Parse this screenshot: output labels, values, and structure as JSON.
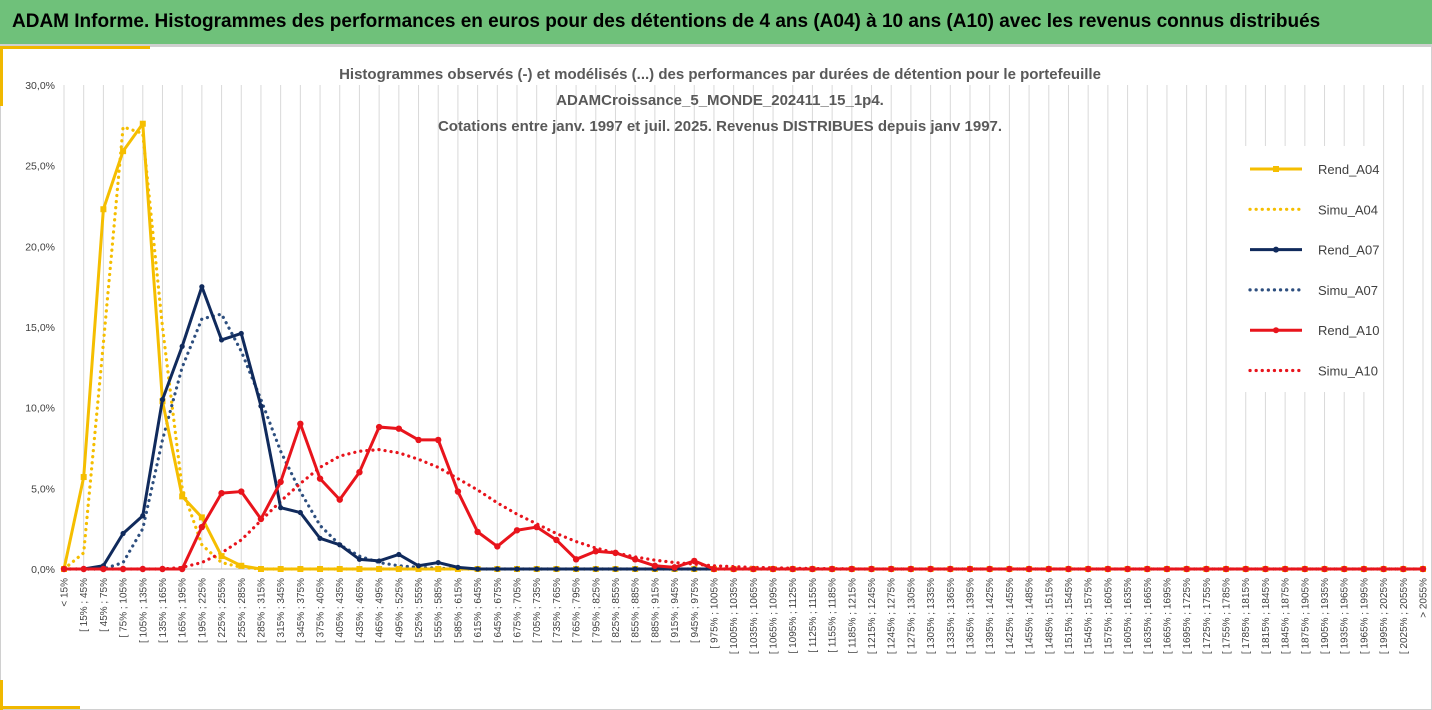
{
  "banner": {
    "title": "ADAM Informe. Histogrammes des performances en euros pour des détentions de 4 ans (A04) à 10 ans (A10) avec les revenus connus distribués"
  },
  "chart_data": {
    "type": "line",
    "title_lines": [
      "Histogrammes observés (-) et modélisés (...) des performances par durées de détention pour le portefeuille",
      "ADAMCroissance_5_MONDE_202411_15_1p4.",
      "Cotations entre janv. 1997 et juil. 2025. Revenus DISTRIBUES depuis janv 1997."
    ],
    "categories": [
      "< 15%",
      "[ 15% ; 45% ",
      "[ 45% ; 75% ",
      "[ 75% ; 105% ",
      "[ 105% ; 135% ",
      "[ 135% ; 165% ",
      "[ 165% ; 195% ",
      "[ 195% ; 225% ",
      "[ 225% ; 255% ",
      "[ 255% ; 285% ",
      "[ 285% ; 315% ",
      "[ 315% ; 345% ",
      "[ 345% ; 375% ",
      "[ 375% ; 405% ",
      "[ 405% ; 435% ",
      "[ 435% ; 465% ",
      "[ 465% ; 495% ",
      "[ 495% ; 525% ",
      "[ 525% ; 555% ",
      "[ 555% ; 585% ",
      "[ 585% ; 615% ",
      "[ 615% ; 645% ",
      "[ 645% ; 675% ",
      "[ 675% ; 705% ",
      "[ 705% ; 735% ",
      "[ 735% ; 765% ",
      "[ 765% ; 795% ",
      "[ 795% ; 825% ",
      "[ 825% ; 855% ",
      "[ 855% ; 885% ",
      "[ 885% ; 915% ",
      "[ 915% ; 945% ",
      "[ 945% ; 975% ",
      "[ 975% ; 1005% ",
      "[ 1005% ; 1035% ",
      "[ 1035% ; 1065% ",
      "[ 1065% ; 1095% ",
      "[ 1095% ; 1125% ",
      "[ 1125% ; 1155% ",
      "[ 1155% ; 1185% ",
      "[ 1185% ; 1215% ",
      "[ 1215% ; 1245% ",
      "[ 1245% ; 1275% ",
      "[ 1275% ; 1305% ",
      "[ 1305% ; 1335% ",
      "[ 1335% ; 1365% ",
      "[ 1365% ; 1395% ",
      "[ 1395% ; 1425% ",
      "[ 1425% ; 1455% ",
      "[ 1455% ; 1485% ",
      "[ 1485% ; 1515% ",
      "[ 1515% ; 1545% ",
      "[ 1545% ; 1575% ",
      "[ 1575% ; 1605% ",
      "[ 1605% ; 1635% ",
      "[ 1635% ; 1665% ",
      "[ 1665% ; 1695% ",
      "[ 1695% ; 1725% ",
      "[ 1725% ; 1755% ",
      "[ 1755% ; 1785% ",
      "[ 1785% ; 1815% ",
      "[ 1815% ; 1845% ",
      "[ 1845% ; 1875% ",
      "[ 1875% ; 1905% ",
      "[ 1905% ; 1935% ",
      "[ 1935% ; 1965% ",
      "[ 1965% ; 1995% ",
      "[ 1995% ; 2025% ",
      "[ 2025% ; 2055% ",
      "> 2055%"
    ],
    "y_ticks": [
      "0,0%",
      "5,0%",
      "10,0%",
      "15,0%",
      "20,0%",
      "25,0%",
      "30,0%"
    ],
    "ylim": [
      0,
      30
    ],
    "grid": "vertical",
    "legend_position": "right",
    "series": [
      {
        "name": "Rend_A04",
        "style": "solid",
        "color": "#f5be00",
        "values": [
          0,
          5.7,
          22.3,
          25.9,
          27.6,
          10.4,
          4.5,
          3.2,
          0.8,
          0.2,
          0,
          0,
          0,
          0,
          0,
          0,
          0,
          0,
          0,
          0,
          0,
          0,
          0,
          0,
          0,
          0,
          0,
          0,
          0,
          0,
          0,
          0,
          0,
          0,
          0,
          0,
          0,
          0,
          0,
          0,
          0,
          0,
          0,
          0,
          0,
          0,
          0,
          0,
          0,
          0,
          0,
          0,
          0,
          0,
          0,
          0,
          0,
          0,
          0,
          0,
          0,
          0,
          0,
          0,
          0,
          0,
          0,
          0,
          0,
          0
        ]
      },
      {
        "name": "Simu_A04",
        "style": "dotted",
        "color": "#f5be00",
        "values": [
          0,
          1.0,
          14.0,
          27.4,
          27.0,
          15.0,
          5.0,
          1.5,
          0.4,
          0.1,
          0,
          0,
          0,
          0,
          0,
          0,
          0,
          0,
          0,
          0,
          0,
          0,
          0,
          0,
          0,
          0,
          0,
          0,
          0,
          0,
          0,
          0,
          0,
          0,
          0,
          0,
          0,
          0,
          0,
          0,
          0,
          0,
          0,
          0,
          0,
          0,
          0,
          0,
          0,
          0,
          0,
          0,
          0,
          0,
          0,
          0,
          0,
          0,
          0,
          0,
          0,
          0,
          0,
          0,
          0,
          0,
          0,
          0,
          0,
          0
        ]
      },
      {
        "name": "Rend_A07",
        "style": "solid",
        "color": "#102a5c",
        "values": [
          0,
          0,
          0.2,
          2.2,
          3.3,
          10.5,
          13.8,
          17.5,
          14.2,
          14.6,
          10.1,
          3.8,
          3.5,
          1.9,
          1.5,
          0.6,
          0.5,
          0.9,
          0.2,
          0.4,
          0.1,
          0,
          0,
          0,
          0,
          0,
          0,
          0,
          0,
          0,
          0,
          0,
          0,
          0,
          0,
          0,
          0,
          0,
          0,
          0,
          0,
          0,
          0,
          0,
          0,
          0,
          0,
          0,
          0,
          0,
          0,
          0,
          0,
          0,
          0,
          0,
          0,
          0,
          0,
          0,
          0,
          0,
          0,
          0,
          0,
          0,
          0,
          0,
          0,
          0
        ]
      },
      {
        "name": "Simu_A07",
        "style": "dotted",
        "color": "#2e4f7f",
        "values": [
          0,
          0,
          0,
          0.4,
          2.5,
          8.0,
          12.5,
          15.5,
          15.8,
          13.5,
          10.5,
          7.3,
          4.8,
          2.7,
          1.5,
          0.8,
          0.4,
          0.2,
          0.1,
          0.05,
          0,
          0,
          0,
          0,
          0,
          0,
          0,
          0,
          0,
          0,
          0,
          0,
          0,
          0,
          0,
          0,
          0,
          0,
          0,
          0,
          0,
          0,
          0,
          0,
          0,
          0,
          0,
          0,
          0,
          0,
          0,
          0,
          0,
          0,
          0,
          0,
          0,
          0,
          0,
          0,
          0,
          0,
          0,
          0,
          0,
          0,
          0,
          0,
          0,
          0
        ]
      },
      {
        "name": "Rend_A10",
        "style": "solid",
        "color": "#e8141c",
        "values": [
          0,
          0,
          0,
          0,
          0,
          0,
          0,
          2.6,
          4.7,
          4.8,
          3.1,
          5.4,
          9.0,
          5.6,
          4.3,
          6.0,
          8.8,
          8.7,
          8.0,
          8.0,
          4.8,
          2.3,
          1.4,
          2.4,
          2.6,
          1.8,
          0.6,
          1.1,
          1.0,
          0.6,
          0.2,
          0.1,
          0.5,
          0,
          0,
          0,
          0,
          0,
          0,
          0,
          0,
          0,
          0,
          0,
          0,
          0,
          0,
          0,
          0,
          0,
          0,
          0,
          0,
          0,
          0,
          0,
          0,
          0,
          0,
          0,
          0,
          0,
          0,
          0,
          0,
          0,
          0,
          0,
          0,
          0
        ]
      },
      {
        "name": "Simu_A10",
        "style": "dotted",
        "color": "#e8141c",
        "values": [
          0,
          0,
          0,
          0,
          0,
          0,
          0.1,
          0.4,
          1.0,
          1.8,
          3.0,
          4.2,
          5.3,
          6.3,
          7.0,
          7.3,
          7.4,
          7.2,
          6.8,
          6.3,
          5.6,
          4.9,
          4.1,
          3.4,
          2.8,
          2.2,
          1.7,
          1.3,
          1.0,
          0.75,
          0.55,
          0.4,
          0.3,
          0.2,
          0.15,
          0.1,
          0.07,
          0.05,
          0.03,
          0.02,
          0.01,
          0,
          0,
          0,
          0,
          0,
          0,
          0,
          0,
          0,
          0,
          0,
          0,
          0,
          0,
          0,
          0,
          0,
          0,
          0,
          0,
          0,
          0,
          0,
          0,
          0,
          0,
          0,
          0,
          0
        ]
      }
    ]
  }
}
